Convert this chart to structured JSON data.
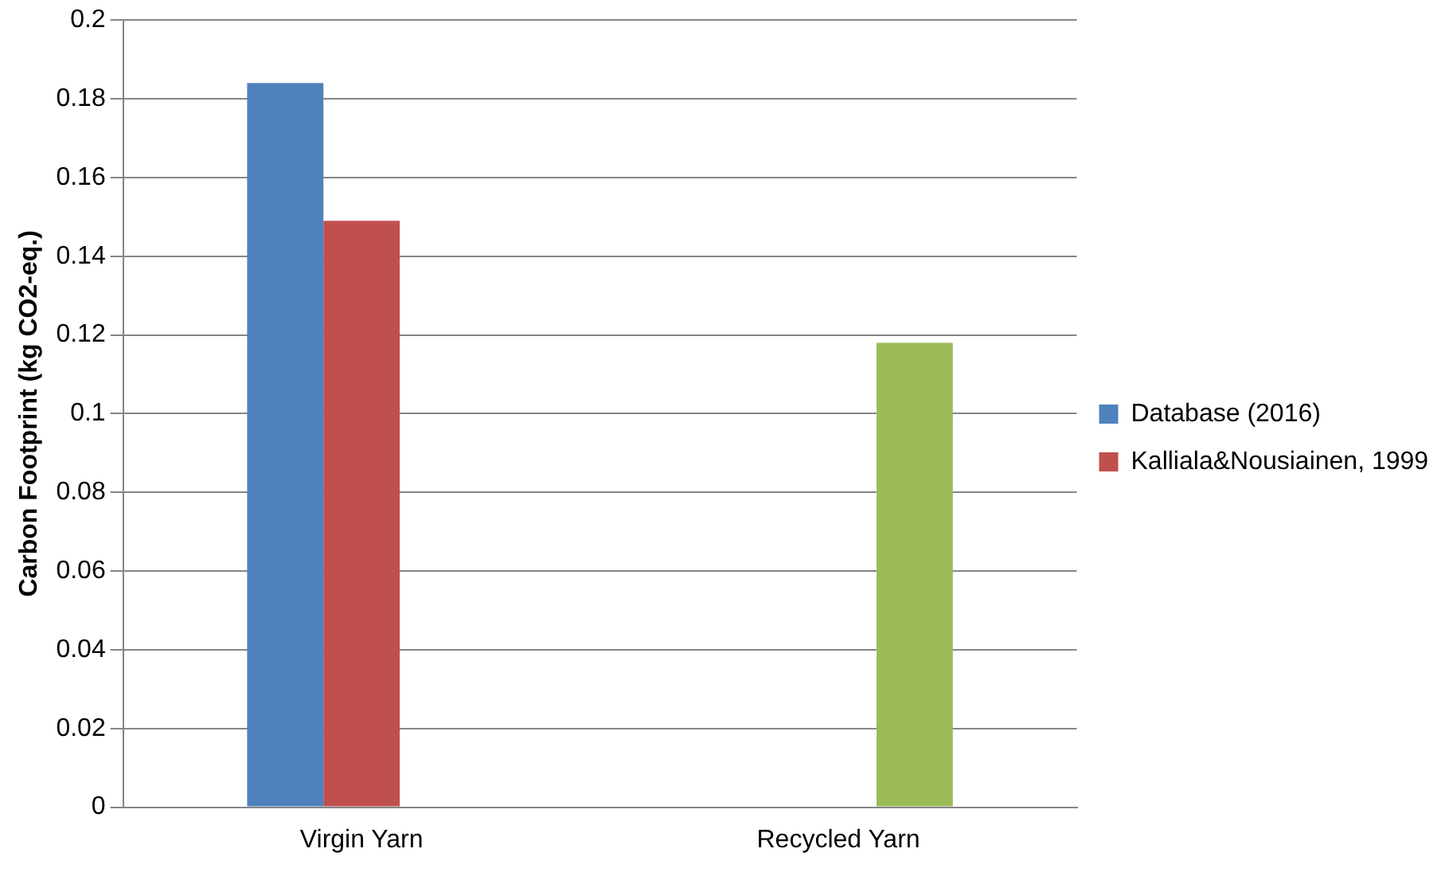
{
  "chart_data": {
    "type": "bar",
    "ylabel": "Carbon Footprint (kg CO2-eq.)",
    "categories": [
      "Virgin Yarn",
      "Recycled Yarn"
    ],
    "series": [
      {
        "name": "Database (2016)",
        "color": "#4f81bd",
        "values": [
          0.184,
          null
        ]
      },
      {
        "name": "Kalliala&Nousiainen, 1999",
        "color": "#c0504d",
        "values": [
          0.149,
          null
        ]
      },
      {
        "color": "#9bbb59",
        "values": [
          null,
          0.118
        ]
      }
    ],
    "ylim": [
      0,
      0.2
    ],
    "yticks": [
      0,
      0.02,
      0.04,
      0.06,
      0.08,
      0.1,
      0.12,
      0.14,
      0.16,
      0.18,
      0.2
    ],
    "grid": "y",
    "legend": "right"
  }
}
